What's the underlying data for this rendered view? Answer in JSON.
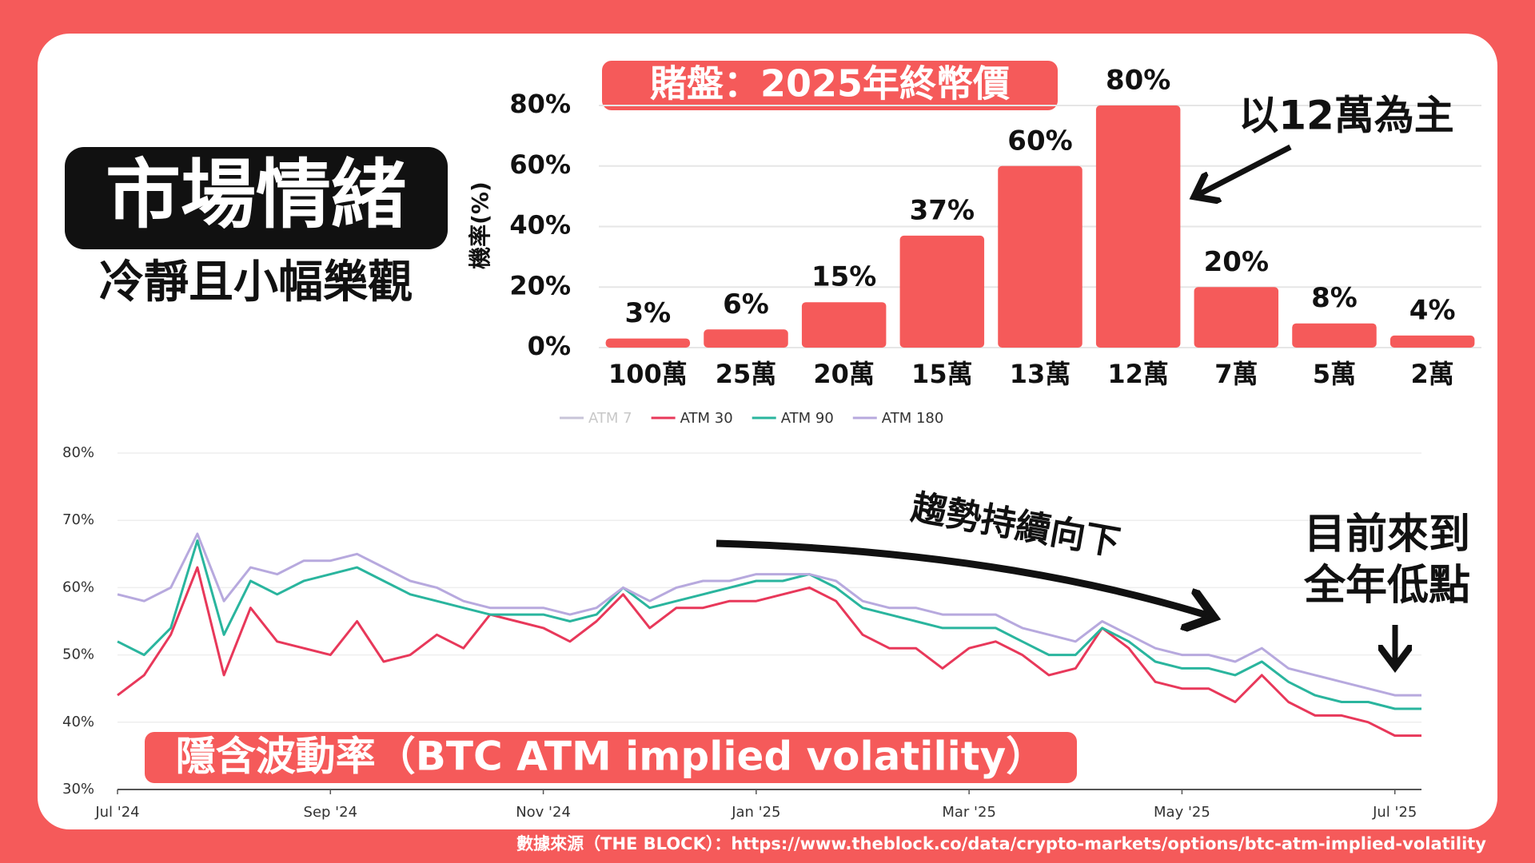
{
  "header": {
    "title": "市場情緒",
    "subtitle": "冷靜且小幅樂觀"
  },
  "source": "數據來源（THE BLOCK）：https://www.theblock.co/data/crypto-markets/options/btc-atm-implied-volatility",
  "chart_data": [
    {
      "type": "bar",
      "title": "賭盤：2025年終幣價",
      "y_label": "機率(%)",
      "categories": [
        "100萬",
        "25萬",
        "20萬",
        "15萬",
        "13萬",
        "12萬",
        "7萬",
        "5萬",
        "2萬"
      ],
      "values": [
        3,
        6,
        15,
        37,
        60,
        80,
        20,
        8,
        4
      ],
      "value_labels": [
        "3%",
        "6%",
        "15%",
        "37%",
        "60%",
        "80%",
        "20%",
        "8%",
        "4%"
      ],
      "color": "#f55a5a",
      "ylim": [
        0,
        80
      ],
      "yticks": [
        {
          "value": 0,
          "label": "0%"
        },
        {
          "value": 20,
          "label": "20%"
        },
        {
          "value": 40,
          "label": "40%"
        },
        {
          "value": 60,
          "label": "60%"
        },
        {
          "value": 80,
          "label": "80%"
        }
      ],
      "grid": true,
      "annotations": [
        "以12萬為主"
      ]
    },
    {
      "type": "line",
      "title": "隱含波動率（BTC ATM implied volatility）",
      "x": [
        0,
        0.25,
        0.5,
        0.75,
        1,
        1.25,
        1.5,
        1.75,
        2,
        2.25,
        2.5,
        2.75,
        3,
        3.25,
        3.5,
        3.75,
        4,
        4.25,
        4.5,
        4.75,
        5,
        5.25,
        5.5,
        5.75,
        6,
        6.25,
        6.5,
        6.75,
        7,
        7.25,
        7.5,
        7.75,
        8,
        8.25,
        8.5,
        8.75,
        9,
        9.25,
        9.5,
        9.75,
        10,
        10.25,
        10.5,
        10.75,
        11,
        11.25,
        11.5,
        11.75,
        12,
        12.25
      ],
      "series": [
        {
          "name": "ATM 7",
          "color": "#c8c4d8",
          "visible": false,
          "values": [
            null,
            null,
            null,
            null,
            null,
            null,
            null,
            null,
            null,
            null,
            null,
            null,
            null,
            null,
            null,
            null,
            null,
            null,
            null,
            null,
            null,
            null,
            null,
            null,
            null,
            null,
            null,
            null,
            null,
            null,
            null,
            null,
            null,
            null,
            null,
            null,
            null,
            null,
            null,
            null,
            null,
            null,
            null,
            null,
            null,
            null,
            null,
            null,
            null,
            null
          ]
        },
        {
          "name": "ATM 30",
          "color": "#e8385a",
          "visible": true,
          "values": [
            44,
            47,
            53,
            63,
            47,
            57,
            52,
            51,
            50,
            55,
            49,
            50,
            53,
            51,
            56,
            55,
            54,
            52,
            55,
            59,
            54,
            57,
            57,
            58,
            58,
            59,
            60,
            58,
            53,
            51,
            51,
            48,
            51,
            52,
            50,
            47,
            48,
            54,
            51,
            46,
            45,
            45,
            43,
            47,
            43,
            41,
            41,
            40,
            38,
            38
          ]
        },
        {
          "name": "ATM 90",
          "color": "#2ab59e",
          "visible": true,
          "values": [
            52,
            50,
            54,
            67,
            53,
            61,
            59,
            61,
            62,
            63,
            61,
            59,
            58,
            57,
            56,
            56,
            56,
            55,
            56,
            60,
            57,
            58,
            59,
            60,
            61,
            61,
            62,
            60,
            57,
            56,
            55,
            54,
            54,
            54,
            52,
            50,
            50,
            54,
            52,
            49,
            48,
            48,
            47,
            49,
            46,
            44,
            43,
            43,
            42,
            42
          ]
        },
        {
          "name": "ATM 180",
          "color": "#b7a9de",
          "visible": true,
          "values": [
            59,
            58,
            60,
            68,
            58,
            63,
            62,
            64,
            64,
            65,
            63,
            61,
            60,
            58,
            57,
            57,
            57,
            56,
            57,
            60,
            58,
            60,
            61,
            61,
            62,
            62,
            62,
            61,
            58,
            57,
            57,
            56,
            56,
            56,
            54,
            53,
            52,
            55,
            53,
            51,
            50,
            50,
            49,
            51,
            48,
            47,
            46,
            45,
            44,
            44
          ]
        }
      ],
      "xlim": [
        0,
        12.25
      ],
      "xticks": [
        {
          "value": 0,
          "label": "Jul '24"
        },
        {
          "value": 2,
          "label": "Sep '24"
        },
        {
          "value": 4,
          "label": "Nov '24"
        },
        {
          "value": 6,
          "label": "Jan '25"
        },
        {
          "value": 8,
          "label": "Mar '25"
        },
        {
          "value": 10,
          "label": "May '25"
        },
        {
          "value": 12,
          "label": "Jul '25"
        }
      ],
      "ylim": [
        30,
        80
      ],
      "yticks": [
        {
          "value": 30,
          "label": "30%"
        },
        {
          "value": 40,
          "label": "40%"
        },
        {
          "value": 50,
          "label": "50%"
        },
        {
          "value": 60,
          "label": "60%"
        },
        {
          "value": 70,
          "label": "70%"
        },
        {
          "value": 80,
          "label": "80%"
        }
      ],
      "grid": true,
      "annotations": [
        "趨勢持續向下",
        [
          "目前來到",
          "全年低點"
        ]
      ]
    }
  ]
}
